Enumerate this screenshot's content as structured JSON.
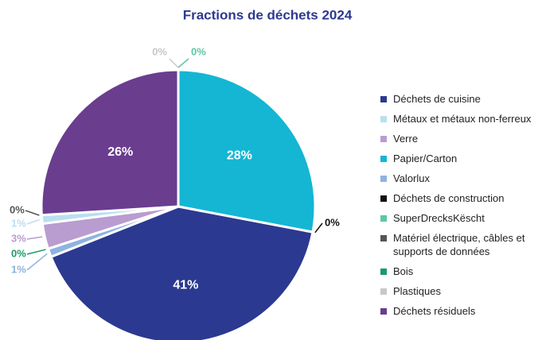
{
  "chart_data": {
    "type": "pie",
    "title": "Fractions de déchets 2024",
    "categories": [
      "Déchets de cuisine",
      "Métaux et métaux non-ferreux",
      "Verre",
      "Papier/Carton",
      "Valorlux",
      "Déchets de construction",
      "SuperDrecksKëscht",
      "Matériel électrique, câbles et supports de données",
      "Bois",
      "Plastiques",
      "Déchets résiduels"
    ],
    "values": [
      41,
      1,
      3,
      28,
      1,
      0,
      0,
      0,
      0,
      0,
      26
    ],
    "value_labels": [
      "41%",
      "1%",
      "3%",
      "28%",
      "1%",
      "0%",
      "0%",
      "0%",
      "0%",
      "0%",
      "26%"
    ],
    "colors": [
      "#2b3990",
      "#b9dff0",
      "#b99cd0",
      "#14b6d4",
      "#8fb3df",
      "#111111",
      "#5cc7a2",
      "#555555",
      "#1a9a6a",
      "#c8c8c8",
      "#6a3d8f"
    ],
    "legend": "right"
  }
}
